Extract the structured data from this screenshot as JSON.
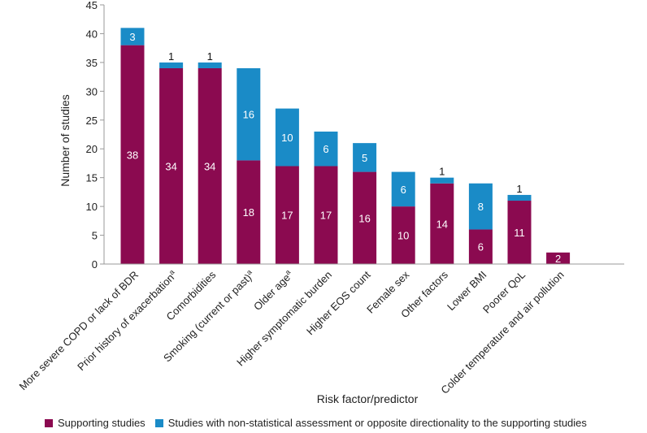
{
  "chart_data": {
    "type": "bar",
    "stacked": true,
    "title": "",
    "xlabel": "Risk factor/predictor",
    "ylabel": "Number of studies",
    "ylim": [
      0,
      45
    ],
    "yticks": [
      0,
      5,
      10,
      15,
      20,
      25,
      30,
      35,
      40,
      45
    ],
    "categories": [
      "More severe COPD or lack of BDR",
      "Prior history of exacerbation",
      "Comorbidities",
      "Smoking (current or past)",
      "Older age",
      "Higher symptomatic burden",
      "Higher EOS count",
      "Female sex",
      "Other factors",
      "Lower BMI",
      "Poorer QoL",
      "Colder temperature and air pollution"
    ],
    "category_superscripts": [
      "",
      "a",
      "",
      "a",
      "a",
      "",
      "",
      "",
      "",
      "",
      "",
      ""
    ],
    "series": [
      {
        "name": "Supporting studies",
        "color": "#8b0a50",
        "values": [
          38,
          34,
          34,
          18,
          17,
          17,
          16,
          10,
          14,
          6,
          11,
          2
        ]
      },
      {
        "name": "Studies with non-statistical assessment or opposite directionality to the supporting studies",
        "color": "#1a8bc7",
        "values": [
          3,
          1,
          1,
          16,
          10,
          6,
          5,
          6,
          1,
          8,
          1,
          0
        ]
      }
    ],
    "legend_position": "bottom"
  }
}
